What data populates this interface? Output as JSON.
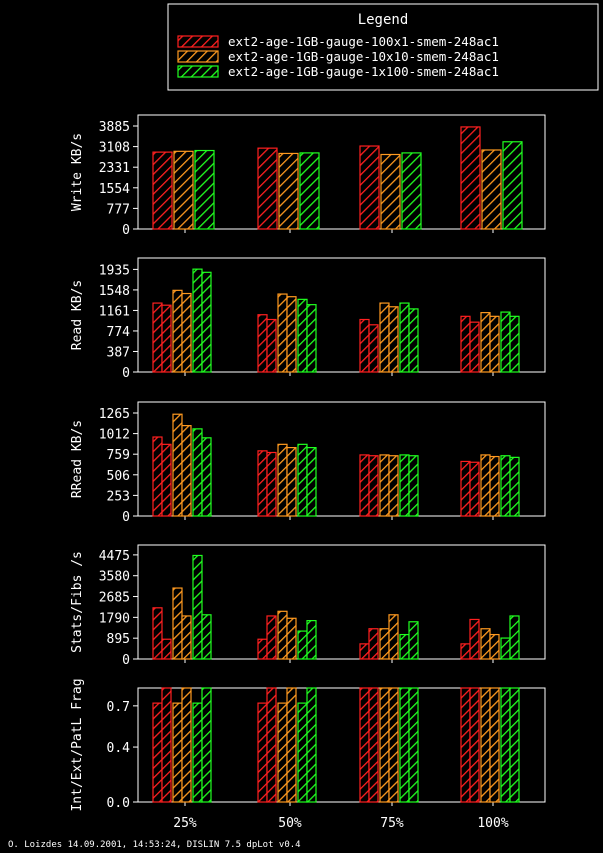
{
  "legend": {
    "title": "Legend",
    "entries": [
      {
        "label": "ext2-age-1GB-gauge-100x1-smem-248ac1",
        "color": "#ff2020"
      },
      {
        "label": "ext2-age-1GB-gauge-10x10-smem-248ac1",
        "color": "#ff9a20"
      },
      {
        "label": "ext2-age-1GB-gauge-1x100-smem-248ac1",
        "color": "#20ff20"
      }
    ]
  },
  "footer": "O. Loizdes 14.09.2001, 14:53:24, DISLIN 7.5 dpLot v0.4",
  "chart_data": [
    {
      "type": "bar",
      "ylabel": "Write KB/s",
      "categories": [
        "25%",
        "50%",
        "75%",
        "100%"
      ],
      "yticks": [
        "0",
        "777",
        "1554",
        "2331",
        "3108",
        "3885"
      ],
      "ylim": [
        0,
        4300
      ],
      "bars_per_series": 1,
      "series": [
        {
          "color": "#ff2020",
          "values": [
            [
              2900
            ],
            [
              3050
            ],
            [
              3130
            ],
            [
              3850
            ]
          ]
        },
        {
          "color": "#ff9a20",
          "values": [
            [
              2930
            ],
            [
              2850
            ],
            [
              2810
            ],
            [
              2980
            ]
          ]
        },
        {
          "color": "#20ff20",
          "values": [
            [
              2960
            ],
            [
              2870
            ],
            [
              2870
            ],
            [
              3290
            ]
          ]
        }
      ]
    },
    {
      "type": "bar",
      "ylabel": "Read KB/s",
      "categories": [
        "25%",
        "50%",
        "75%",
        "100%"
      ],
      "yticks": [
        "0",
        "387",
        "774",
        "1161",
        "1548",
        "1935"
      ],
      "ylim": [
        0,
        2150
      ],
      "bars_per_series": 2,
      "series": [
        {
          "color": "#ff2020",
          "values": [
            [
              1300,
              1260
            ],
            [
              1080,
              990
            ],
            [
              990,
              890
            ],
            [
              1050,
              940
            ]
          ]
        },
        {
          "color": "#ff9a20",
          "values": [
            [
              1540,
              1480
            ],
            [
              1470,
              1420
            ],
            [
              1300,
              1230
            ],
            [
              1120,
              1050
            ]
          ]
        },
        {
          "color": "#20ff20",
          "values": [
            [
              1940,
              1880
            ],
            [
              1370,
              1270
            ],
            [
              1300,
              1190
            ],
            [
              1130,
              1050
            ]
          ]
        }
      ]
    },
    {
      "type": "bar",
      "ylabel": "RRead KB/s",
      "categories": [
        "25%",
        "50%",
        "75%",
        "100%"
      ],
      "yticks": [
        "0",
        "253",
        "506",
        "759",
        "1012",
        "1265"
      ],
      "ylim": [
        0,
        1400
      ],
      "bars_per_series": 2,
      "series": [
        {
          "color": "#ff2020",
          "values": [
            [
              970,
              880
            ],
            [
              800,
              780
            ],
            [
              750,
              740
            ],
            [
              670,
              660
            ]
          ]
        },
        {
          "color": "#ff9a20",
          "values": [
            [
              1250,
              1110
            ],
            [
              880,
              840
            ],
            [
              750,
              740
            ],
            [
              750,
              730
            ]
          ]
        },
        {
          "color": "#20ff20",
          "values": [
            [
              1070,
              960
            ],
            [
              880,
              840
            ],
            [
              750,
              740
            ],
            [
              740,
              720
            ]
          ]
        }
      ]
    },
    {
      "type": "bar",
      "ylabel": "Stats/Fibs /s",
      "categories": [
        "25%",
        "50%",
        "75%",
        "100%"
      ],
      "yticks": [
        "0",
        "895",
        "1790",
        "2685",
        "3580",
        "4475"
      ],
      "ylim": [
        0,
        4900
      ],
      "bars_per_series": 2,
      "series": [
        {
          "color": "#ff2020",
          "values": [
            [
              2200,
              850
            ],
            [
              850,
              1850
            ],
            [
              650,
              1300
            ],
            [
              650,
              1700
            ]
          ]
        },
        {
          "color": "#ff9a20",
          "values": [
            [
              3050,
              1850
            ],
            [
              2050,
              1750
            ],
            [
              1300,
              1900
            ],
            [
              1300,
              1050
            ]
          ]
        },
        {
          "color": "#20ff20",
          "values": [
            [
              4450,
              1900
            ],
            [
              1200,
              1650
            ],
            [
              1050,
              1600
            ],
            [
              900,
              1850
            ]
          ]
        }
      ]
    },
    {
      "type": "bar",
      "ylabel": "Int/Ext/PatL Frag",
      "categories": [
        "25%",
        "50%",
        "75%",
        "100%"
      ],
      "yticks": [
        "0.0",
        "0.4",
        "0.7"
      ],
      "ytick_values": [
        0.0,
        0.4,
        0.7
      ],
      "ylim": [
        0,
        0.83
      ],
      "bars_per_series": 2,
      "series": [
        {
          "color": "#ff2020",
          "values": [
            [
              0.72,
              0.83
            ],
            [
              0.72,
              0.83
            ],
            [
              0.83,
              0.83
            ],
            [
              0.83,
              0.83
            ]
          ]
        },
        {
          "color": "#ff9a20",
          "values": [
            [
              0.72,
              0.83
            ],
            [
              0.72,
              0.83
            ],
            [
              0.83,
              0.83
            ],
            [
              0.83,
              0.83
            ]
          ]
        },
        {
          "color": "#20ff20",
          "values": [
            [
              0.72,
              0.83
            ],
            [
              0.72,
              0.83
            ],
            [
              0.83,
              0.83
            ],
            [
              0.83,
              0.83
            ]
          ]
        }
      ]
    }
  ]
}
